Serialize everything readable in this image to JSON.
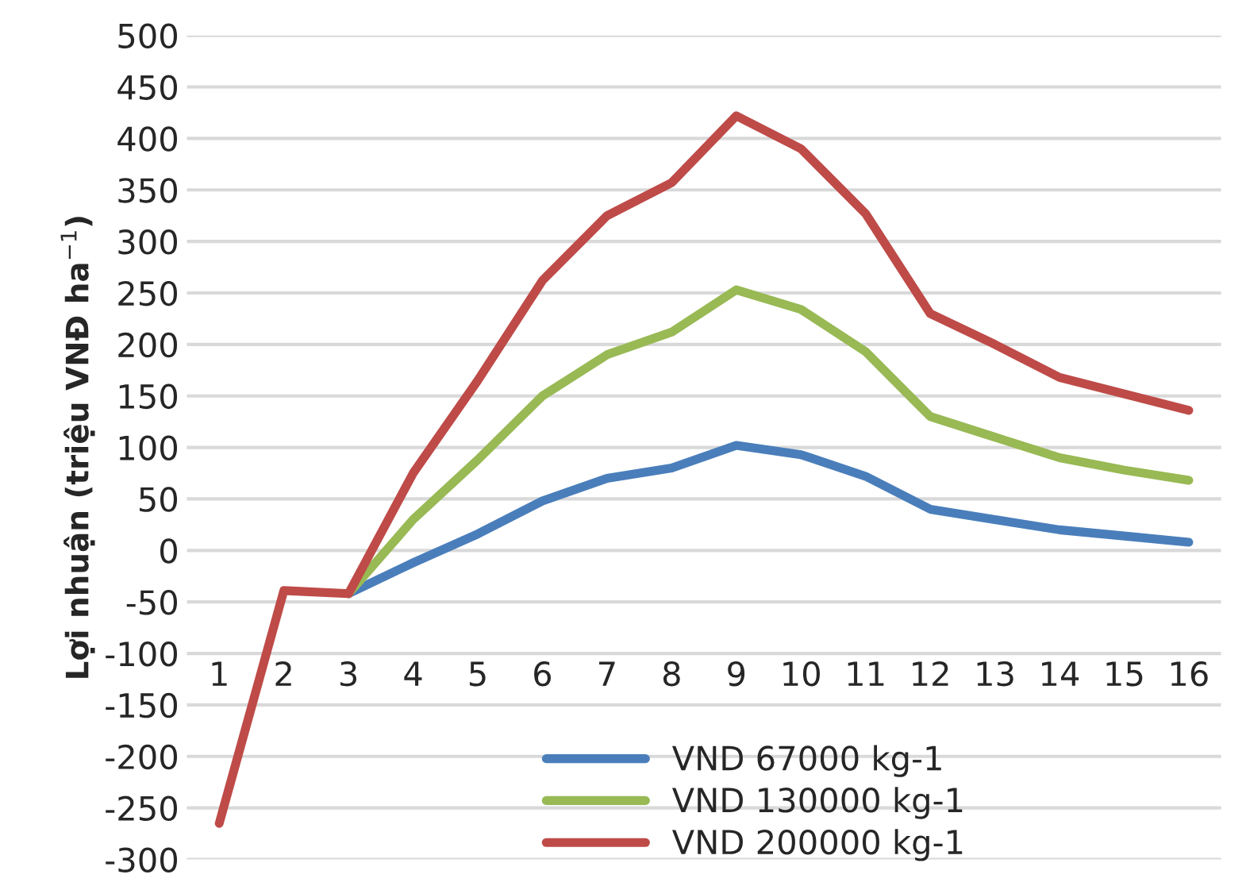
{
  "chart_data": {
    "type": "line",
    "ylabel": "Lợi nhuận (triệu VNĐ ha$^{−1}$)",
    "categories": [
      "1",
      "2",
      "3",
      "4",
      "5",
      "6",
      "7",
      "8",
      "9",
      "10",
      "11",
      "12",
      "13",
      "14",
      "15",
      "16"
    ],
    "series": [
      {
        "name": "VND 67000 kg-1",
        "color": "#4a7ebb",
        "values": [
          null,
          null,
          -42,
          -12,
          16,
          48,
          70,
          80,
          102,
          93,
          72,
          40,
          30,
          20,
          14,
          8
        ]
      },
      {
        "name": "VND 130000 kg-1",
        "color": "#98b954",
        "values": [
          null,
          null,
          -42,
          30,
          88,
          150,
          190,
          212,
          253,
          234,
          193,
          130,
          110,
          90,
          78,
          68
        ]
      },
      {
        "name": "VND 200000 kg-1",
        "color": "#be4b48",
        "values": [
          -265,
          -39,
          -42,
          75,
          165,
          262,
          325,
          357,
          422,
          390,
          327,
          230,
          200,
          168,
          152,
          136
        ]
      }
    ],
    "ylim": [
      -300,
      500
    ],
    "yticks": [
      -300,
      -250,
      -200,
      -150,
      -100,
      -50,
      0,
      50,
      100,
      150,
      200,
      250,
      300,
      350,
      400,
      450,
      500
    ],
    "grid": "y",
    "legend": "bottom",
    "marker": "none",
    "line_style": "solid"
  }
}
